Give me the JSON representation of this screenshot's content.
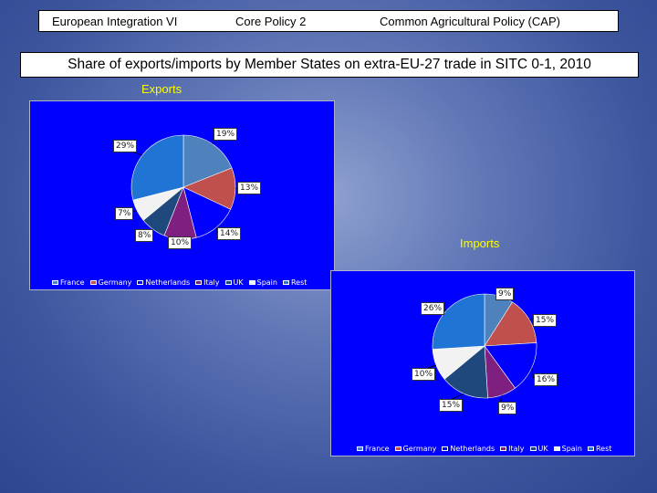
{
  "header": {
    "course": "European Integration  VI",
    "section": "Core  Policy  2",
    "topic": "Common Agricultural Policy (CAP)"
  },
  "slide_title": "Share of exports/imports by Member States on extra-EU-27 trade in SITC 0-1, 2010",
  "chart_data": [
    {
      "id": "exports",
      "type": "pie",
      "title": "Exports",
      "categories": [
        "France",
        "Germany",
        "Netherlands",
        "Italy",
        "UK",
        "Spain",
        "Rest"
      ],
      "values": [
        19,
        13,
        14,
        10,
        8,
        7,
        29
      ],
      "value_labels": [
        "19%",
        "13%",
        "14%",
        "10%",
        "8%",
        "7%",
        "29%"
      ],
      "colors": [
        "#4f81bd",
        "#c0504d",
        "#0000ff",
        "#7f1f7f",
        "#1f497d",
        "#f2f2f2",
        "#2074d4"
      ],
      "legend": "bottom"
    },
    {
      "id": "imports",
      "type": "pie",
      "title": "Imports",
      "categories": [
        "France",
        "Germany",
        "Netherlands",
        "Italy",
        "UK",
        "Spain",
        "Rest"
      ],
      "values": [
        9,
        15,
        16,
        9,
        15,
        10,
        26
      ],
      "value_labels": [
        "9%",
        "15%",
        "16%",
        "9%",
        "15%",
        "10%",
        "26%"
      ],
      "colors": [
        "#4f81bd",
        "#c0504d",
        "#0000ff",
        "#7f1f7f",
        "#1f497d",
        "#f2f2f2",
        "#2074d4"
      ],
      "legend": "bottom"
    }
  ]
}
